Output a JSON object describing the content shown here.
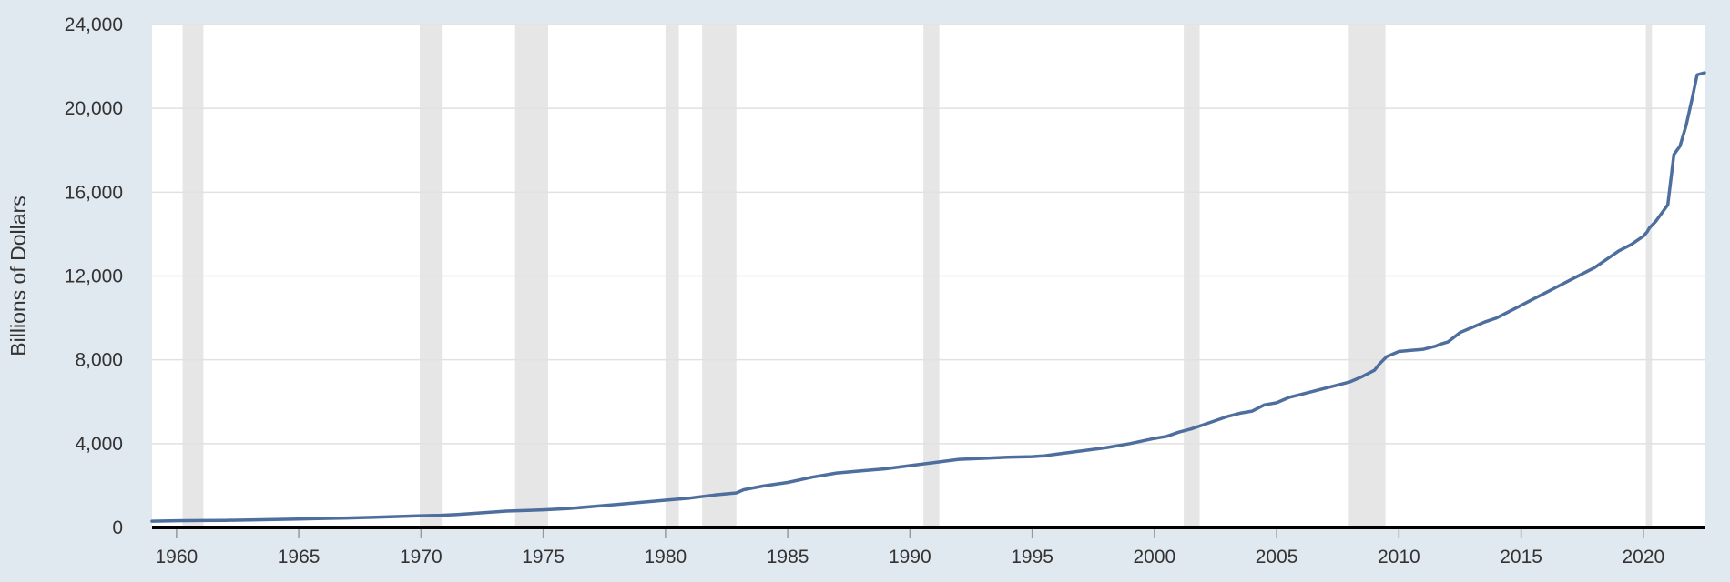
{
  "chart_data": {
    "type": "line",
    "title": "",
    "xlabel": "",
    "ylabel": "Billions of Dollars",
    "xlim": [
      1959.0,
      2022.5
    ],
    "ylim": [
      0,
      24000
    ],
    "grid": true,
    "legend": "none",
    "x_ticks": [
      1960,
      1965,
      1970,
      1975,
      1980,
      1985,
      1990,
      1995,
      2000,
      2005,
      2010,
      2015,
      2020
    ],
    "x_tick_labels": [
      "1960",
      "1965",
      "1970",
      "1975",
      "1980",
      "1985",
      "1990",
      "1995",
      "2000",
      "2005",
      "2010",
      "2015",
      "2020"
    ],
    "y_ticks": [
      0,
      4000,
      8000,
      12000,
      16000,
      20000,
      24000
    ],
    "y_tick_labels": [
      "0",
      "4,000",
      "8,000",
      "12,000",
      "16,000",
      "20,000",
      "24,000"
    ],
    "recessions": [
      [
        1960.25,
        1961.1
      ],
      [
        1969.95,
        1970.85
      ],
      [
        1973.85,
        1975.2
      ],
      [
        1980.0,
        1980.55
      ],
      [
        1981.5,
        1982.9
      ],
      [
        1990.55,
        1991.2
      ],
      [
        2001.2,
        2001.85
      ],
      [
        2007.95,
        2009.45
      ],
      [
        2020.1,
        2020.35
      ]
    ],
    "series": [
      {
        "color": "#4e6e9e",
        "x": [
          1959.0,
          1960.0,
          1961.0,
          1962.0,
          1963.0,
          1964.0,
          1965.0,
          1966.0,
          1967.0,
          1968.0,
          1969.0,
          1970.0,
          1970.8,
          1971.5,
          1972.5,
          1973.5,
          1974.5,
          1975.0,
          1976.0,
          1977.0,
          1978.0,
          1979.0,
          1980.0,
          1981.0,
          1982.0,
          1982.9,
          1983.2,
          1984.0,
          1985.0,
          1986.0,
          1987.0,
          1988.0,
          1989.0,
          1990.0,
          1991.0,
          1992.0,
          1993.0,
          1994.0,
          1995.0,
          1995.5,
          1996.0,
          1997.0,
          1998.0,
          1999.0,
          2000.0,
          2000.5,
          2001.0,
          2001.5,
          2002.0,
          2002.5,
          2003.0,
          2003.5,
          2004.0,
          2004.5,
          2005.0,
          2005.5,
          2006.0,
          2007.0,
          2008.0,
          2008.5,
          2009.0,
          2009.2,
          2009.5,
          2010.0,
          2010.5,
          2011.0,
          2011.5,
          2011.7,
          2012.0,
          2012.5,
          2013.0,
          2013.5,
          2014.0,
          2014.5,
          2015.0,
          2015.5,
          2016.0,
          2016.5,
          2017.0,
          2017.5,
          2018.0,
          2018.5,
          2019.0,
          2019.5,
          2020.0,
          2020.15,
          2020.25,
          2020.5,
          2020.75,
          2021.0,
          2021.25,
          2021.5,
          2021.75,
          2022.0,
          2022.2,
          2022.5
        ],
        "values": [
          300,
          320,
          330,
          340,
          360,
          380,
          400,
          430,
          450,
          480,
          520,
          560,
          580,
          620,
          700,
          780,
          820,
          840,
          900,
          1000,
          1100,
          1200,
          1300,
          1400,
          1550,
          1650,
          1800,
          1980,
          2150,
          2400,
          2600,
          2700,
          2800,
          2950,
          3100,
          3250,
          3300,
          3350,
          3380,
          3420,
          3500,
          3650,
          3800,
          4000,
          4250,
          4350,
          4550,
          4700,
          4900,
          5100,
          5300,
          5450,
          5550,
          5850,
          5950,
          6200,
          6350,
          6650,
          6950,
          7200,
          7500,
          7800,
          8150,
          8400,
          8450,
          8500,
          8650,
          8750,
          8850,
          9300,
          9550,
          9800,
          10000,
          10300,
          10600,
          10900,
          11200,
          11500,
          11800,
          12100,
          12400,
          12800,
          13200,
          13500,
          13900,
          14100,
          14300,
          14600,
          15000,
          15400,
          17800,
          18200,
          19200,
          20500,
          21600,
          21700
        ]
      }
    ]
  }
}
